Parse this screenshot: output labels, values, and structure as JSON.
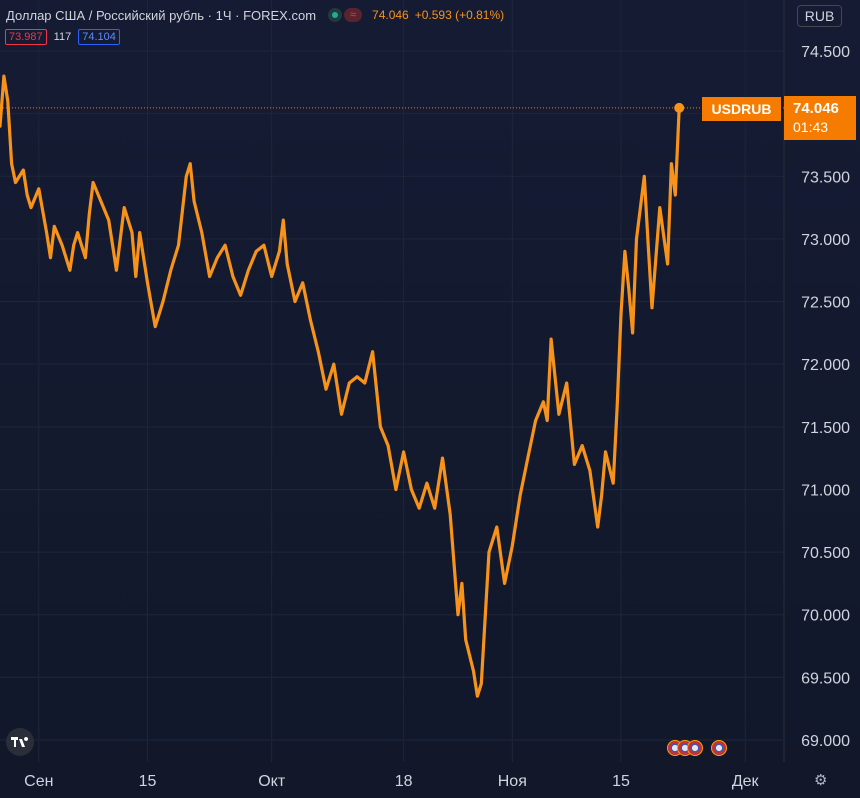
{
  "header": {
    "title": "Доллар США / Российский рубль · 1Ч · FOREX.com",
    "last_price": "74.046",
    "change": "+0.593 (+0.81%)",
    "bid": "73.987",
    "spread": "117",
    "ask": "74.104"
  },
  "currency_button": "RUB",
  "price_label": {
    "symbol": "USDRUB",
    "value": "74.046",
    "countdown": "01:43"
  },
  "colors": {
    "line": "#f7931a",
    "background": "#131a2e",
    "grid": "#1f2639",
    "axis_text": "#d1d4dc"
  },
  "icons": [
    "tradingview-logo-icon",
    "us-flag-event-icon",
    "gear-icon"
  ],
  "chart_data": {
    "type": "line",
    "title": "Доллар США / Российский рубль",
    "xlabel": "",
    "ylabel": "",
    "ylim": [
      68.85,
      74.75
    ],
    "y_ticks": [
      69.0,
      69.5,
      70.0,
      70.5,
      71.0,
      71.5,
      72.0,
      72.5,
      73.0,
      73.5,
      74.0,
      74.5
    ],
    "y_tick_labels": [
      "69.000",
      "69.500",
      "70.000",
      "70.500",
      "71.000",
      "71.500",
      "72.000",
      "72.500",
      "73.000",
      "73.500",
      "74.000",
      "74.500"
    ],
    "x_tick_labels": [
      "Сен",
      "15",
      "Окт",
      "18",
      "Ноя",
      "15",
      "Дек"
    ],
    "x_range": [
      "2021-08-27",
      "2021-12-06"
    ],
    "x_ticks": [
      "2021-09-01",
      "2021-09-15",
      "2021-10-01",
      "2021-10-18",
      "2021-11-01",
      "2021-11-15",
      "2021-12-01"
    ],
    "grid": true,
    "series": [
      {
        "values": [
          [
            "2021-08-27",
            73.9
          ],
          [
            "2021-08-27",
            74.3
          ],
          [
            "2021-08-28",
            74.1
          ],
          [
            "2021-08-28",
            73.6
          ],
          [
            "2021-08-29",
            73.45
          ],
          [
            "2021-08-30",
            73.55
          ],
          [
            "2021-08-30",
            73.35
          ],
          [
            "2021-08-31",
            73.25
          ],
          [
            "2021-09-01",
            73.4
          ],
          [
            "2021-09-02",
            73.05
          ],
          [
            "2021-09-02",
            72.85
          ],
          [
            "2021-09-03",
            73.1
          ],
          [
            "2021-09-04",
            72.95
          ],
          [
            "2021-09-05",
            72.75
          ],
          [
            "2021-09-05",
            72.95
          ],
          [
            "2021-09-06",
            73.05
          ],
          [
            "2021-09-07",
            72.85
          ],
          [
            "2021-09-07",
            73.2
          ],
          [
            "2021-09-08",
            73.45
          ],
          [
            "2021-09-09",
            73.3
          ],
          [
            "2021-09-10",
            73.15
          ],
          [
            "2021-09-10",
            72.95
          ],
          [
            "2021-09-11",
            72.75
          ],
          [
            "2021-09-12",
            73.25
          ],
          [
            "2021-09-13",
            73.05
          ],
          [
            "2021-09-13",
            72.7
          ],
          [
            "2021-09-14",
            73.05
          ],
          [
            "2021-09-15",
            72.65
          ],
          [
            "2021-09-16",
            72.3
          ],
          [
            "2021-09-17",
            72.5
          ],
          [
            "2021-09-18",
            72.75
          ],
          [
            "2021-09-19",
            72.95
          ],
          [
            "2021-09-20",
            73.5
          ],
          [
            "2021-09-20",
            73.6
          ],
          [
            "2021-09-21",
            73.3
          ],
          [
            "2021-09-22",
            73.05
          ],
          [
            "2021-09-23",
            72.7
          ],
          [
            "2021-09-24",
            72.85
          ],
          [
            "2021-09-25",
            72.95
          ],
          [
            "2021-09-26",
            72.7
          ],
          [
            "2021-09-27",
            72.55
          ],
          [
            "2021-09-28",
            72.75
          ],
          [
            "2021-09-29",
            72.9
          ],
          [
            "2021-09-30",
            72.95
          ],
          [
            "2021-10-01",
            72.7
          ],
          [
            "2021-10-02",
            72.9
          ],
          [
            "2021-10-02",
            73.15
          ],
          [
            "2021-10-03",
            72.8
          ],
          [
            "2021-10-04",
            72.5
          ],
          [
            "2021-10-05",
            72.65
          ],
          [
            "2021-10-06",
            72.35
          ],
          [
            "2021-10-07",
            72.1
          ],
          [
            "2021-10-08",
            71.8
          ],
          [
            "2021-10-09",
            72.0
          ],
          [
            "2021-10-10",
            71.6
          ],
          [
            "2021-10-11",
            71.85
          ],
          [
            "2021-10-12",
            71.9
          ],
          [
            "2021-10-13",
            71.85
          ],
          [
            "2021-10-14",
            72.1
          ],
          [
            "2021-10-15",
            71.5
          ],
          [
            "2021-10-16",
            71.35
          ],
          [
            "2021-10-17",
            71.0
          ],
          [
            "2021-10-18",
            71.3
          ],
          [
            "2021-10-19",
            71.0
          ],
          [
            "2021-10-20",
            70.85
          ],
          [
            "2021-10-21",
            71.05
          ],
          [
            "2021-10-22",
            70.85
          ],
          [
            "2021-10-23",
            71.25
          ],
          [
            "2021-10-24",
            70.8
          ],
          [
            "2021-10-25",
            70.0
          ],
          [
            "2021-10-25",
            70.25
          ],
          [
            "2021-10-26",
            69.8
          ],
          [
            "2021-10-27",
            69.55
          ],
          [
            "2021-10-27",
            69.35
          ],
          [
            "2021-10-28",
            69.45
          ],
          [
            "2021-10-29",
            70.5
          ],
          [
            "2021-10-30",
            70.7
          ],
          [
            "2021-10-31",
            70.25
          ],
          [
            "2021-11-01",
            70.55
          ],
          [
            "2021-11-02",
            70.95
          ],
          [
            "2021-11-03",
            71.25
          ],
          [
            "2021-11-04",
            71.55
          ],
          [
            "2021-11-05",
            71.7
          ],
          [
            "2021-11-05",
            71.55
          ],
          [
            "2021-11-06",
            72.2
          ],
          [
            "2021-11-07",
            71.6
          ],
          [
            "2021-11-08",
            71.85
          ],
          [
            "2021-11-09",
            71.2
          ],
          [
            "2021-11-10",
            71.35
          ],
          [
            "2021-11-11",
            71.15
          ],
          [
            "2021-11-12",
            70.7
          ],
          [
            "2021-11-12",
            70.95
          ],
          [
            "2021-11-13",
            71.3
          ],
          [
            "2021-11-14",
            71.05
          ],
          [
            "2021-11-14",
            71.65
          ],
          [
            "2021-11-15",
            72.4
          ],
          [
            "2021-11-15",
            72.9
          ],
          [
            "2021-11-16",
            72.6
          ],
          [
            "2021-11-16",
            72.25
          ],
          [
            "2021-11-17",
            73.0
          ],
          [
            "2021-11-18",
            73.5
          ],
          [
            "2021-11-18",
            72.95
          ],
          [
            "2021-11-19",
            72.45
          ],
          [
            "2021-11-20",
            73.25
          ],
          [
            "2021-11-21",
            72.8
          ],
          [
            "2021-11-21",
            73.6
          ],
          [
            "2021-11-22",
            73.35
          ],
          [
            "2021-11-22",
            74.046
          ]
        ]
      }
    ],
    "last_value": 74.046
  }
}
